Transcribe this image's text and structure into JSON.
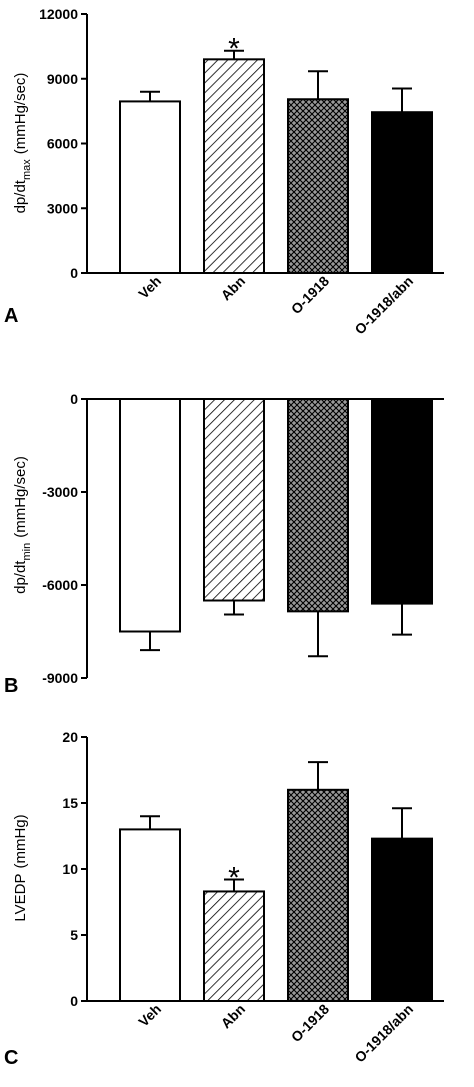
{
  "chart_data": [
    {
      "type": "bar",
      "panel_letter": "A",
      "ylabel_main": "dp/dt",
      "ylabel_sub": "max",
      "ylabel_unit": "(mmHg/sec)",
      "categories": [
        "Veh",
        "Abn",
        "O-1918",
        "O-1918/abn"
      ],
      "values": [
        7950,
        9900,
        8050,
        7450
      ],
      "errors": [
        450,
        400,
        1300,
        1100
      ],
      "significance": [
        "",
        "*",
        "",
        ""
      ],
      "ylim": [
        0,
        12000
      ],
      "yticks": [
        0,
        3000,
        6000,
        9000,
        12000
      ],
      "ytick_labels": [
        "0",
        "3000",
        "6000",
        "9000",
        "12000"
      ],
      "fills": [
        "white",
        "hatch-diagonal",
        "crosshatch",
        "black"
      ]
    },
    {
      "type": "bar",
      "panel_letter": "B",
      "ylabel_main": "dp/dt",
      "ylabel_sub": "min",
      "ylabel_unit": "(mmHg/sec)",
      "categories": [
        "Veh",
        "Abn",
        "O-1918",
        "O-1918/abn"
      ],
      "values": [
        -7500,
        -6500,
        -6850,
        -6600
      ],
      "errors": [
        600,
        450,
        1450,
        1000
      ],
      "ylim": [
        -9000,
        0
      ],
      "yticks": [
        0,
        -3000,
        -6000,
        -9000
      ],
      "ytick_labels": [
        "0",
        "-3000",
        "-6000",
        "-9000"
      ],
      "fills": [
        "white",
        "hatch-diagonal",
        "crosshatch",
        "black"
      ]
    },
    {
      "type": "bar",
      "panel_letter": "C",
      "ylabel_main": "LVEDP",
      "ylabel_sub": "",
      "ylabel_unit": "(mmHg)",
      "categories": [
        "Veh",
        "Abn",
        "O-1918",
        "O-1918/abn"
      ],
      "values": [
        13.0,
        8.3,
        16.0,
        12.3
      ],
      "errors": [
        1.0,
        0.9,
        2.1,
        2.3
      ],
      "significance": [
        "",
        "*",
        "",
        ""
      ],
      "ylim": [
        0,
        20
      ],
      "yticks": [
        0,
        5,
        10,
        15,
        20
      ],
      "ytick_labels": [
        "0",
        "5",
        "10",
        "15",
        "20"
      ],
      "fills": [
        "white",
        "hatch-diagonal",
        "crosshatch",
        "black"
      ]
    }
  ]
}
